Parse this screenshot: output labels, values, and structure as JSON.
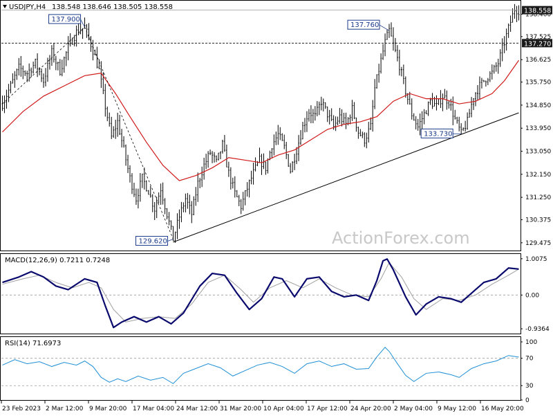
{
  "header": {
    "symbol_timeframe": "USDJPY,H4",
    "ohlc": "138.548 138.646 138.505 138.558"
  },
  "watermark": "ActionForex.com",
  "colors": {
    "candle": "#000000",
    "ma": "#d01919",
    "trendline": "#000000",
    "macd_main": "#0a0a6e",
    "macd_signal": "#a0a0a0",
    "rsi": "#1e8fd6",
    "price_badge_bg": "#1a1a1a",
    "price_badge_text": "#ffffff"
  },
  "chart_data": [
    {
      "type": "candlestick",
      "title": "USDJPY,H4",
      "ylim": [
        129.2,
        138.9
      ],
      "y_ticks": [
        "138.400",
        "137.525",
        "136.625",
        "135.750",
        "134.850",
        "133.950",
        "133.050",
        "132.150",
        "131.250",
        "130.375",
        "129.475"
      ],
      "y_tick_values": [
        138.4,
        137.525,
        136.625,
        135.75,
        134.85,
        133.95,
        133.05,
        132.15,
        131.25,
        130.375,
        129.475
      ],
      "x_ticks": [
        "23 Feb 2023",
        "2 Mar 12:00",
        "9 Mar 20:00",
        "17 Mar 04:00",
        "24 Mar 12:00",
        "31 Mar 20:00",
        "10 Apr 04:00",
        "17 Apr 12:00",
        "24 Apr 20:00",
        "2 May 04:00",
        "9 May 12:00",
        "16 May 20:00"
      ],
      "current_price": "138.558",
      "current_price_value": 138.558,
      "level_line": "137.270",
      "level_line_value": 137.27,
      "annotations": [
        {
          "label": "137.900",
          "value": 137.9
        },
        {
          "label": "129.620",
          "value": 129.62
        },
        {
          "label": "137.760",
          "value": 137.76
        },
        {
          "label": "133.730",
          "value": 133.73
        }
      ],
      "price_path": [
        [
          0,
          134.9
        ],
        [
          4,
          135.6
        ],
        [
          8,
          136.3
        ],
        [
          12,
          136.1
        ],
        [
          16,
          136.5
        ],
        [
          20,
          135.8
        ],
        [
          24,
          136.9
        ],
        [
          28,
          136.2
        ],
        [
          32,
          137.1
        ],
        [
          36,
          137.7
        ],
        [
          40,
          137.9
        ],
        [
          44,
          137.0
        ],
        [
          47,
          136.2
        ],
        [
          50,
          134.8
        ],
        [
          53,
          133.6
        ],
        [
          56,
          134.2
        ],
        [
          59,
          133.1
        ],
        [
          62,
          132.0
        ],
        [
          65,
          131.2
        ],
        [
          68,
          132.0
        ],
        [
          71,
          131.5
        ],
        [
          74,
          130.8
        ],
        [
          77,
          131.6
        ],
        [
          80,
          130.6
        ],
        [
          83,
          129.62
        ],
        [
          86,
          130.5
        ],
        [
          89,
          131.2
        ],
        [
          92,
          130.6
        ],
        [
          95,
          131.8
        ],
        [
          98,
          132.5
        ],
        [
          101,
          133.0
        ],
        [
          104,
          132.6
        ],
        [
          107,
          133.3
        ],
        [
          110,
          132.2
        ],
        [
          113,
          131.4
        ],
        [
          116,
          130.9
        ],
        [
          119,
          131.6
        ],
        [
          122,
          132.2
        ],
        [
          125,
          132.7
        ],
        [
          128,
          132.4
        ],
        [
          131,
          133.3
        ],
        [
          134,
          133.7
        ],
        [
          137,
          133.2
        ],
        [
          140,
          132.3
        ],
        [
          143,
          133.1
        ],
        [
          146,
          134.0
        ],
        [
          149,
          134.6
        ],
        [
          152,
          134.4
        ],
        [
          155,
          135.0
        ],
        [
          158,
          134.5
        ],
        [
          161,
          134.0
        ],
        [
          164,
          134.4
        ],
        [
          167,
          134.1
        ],
        [
          170,
          134.7
        ],
        [
          173,
          133.8
        ],
        [
          176,
          133.5
        ],
        [
          179,
          134.0
        ],
        [
          181,
          135.5
        ],
        [
          184,
          136.6
        ],
        [
          186,
          137.3
        ],
        [
          188,
          137.76
        ],
        [
          190,
          137.2
        ],
        [
          193,
          136.4
        ],
        [
          196,
          135.4
        ],
        [
          199,
          134.5
        ],
        [
          202,
          134.0
        ],
        [
          205,
          134.5
        ],
        [
          208,
          135.0
        ],
        [
          211,
          134.8
        ],
        [
          214,
          135.2
        ],
        [
          217,
          135.0
        ],
        [
          220,
          134.3
        ],
        [
          223,
          133.73
        ],
        [
          226,
          134.2
        ],
        [
          229,
          135.2
        ],
        [
          232,
          135.6
        ],
        [
          235,
          135.9
        ],
        [
          238,
          136.1
        ],
        [
          241,
          136.5
        ],
        [
          244,
          137.3
        ],
        [
          247,
          138.1
        ],
        [
          249,
          138.6
        ],
        [
          251,
          138.558
        ]
      ],
      "ma_path": [
        [
          0,
          133.8
        ],
        [
          10,
          134.6
        ],
        [
          20,
          135.2
        ],
        [
          30,
          135.6
        ],
        [
          40,
          136.0
        ],
        [
          48,
          136.1
        ],
        [
          55,
          135.3
        ],
        [
          62,
          134.4
        ],
        [
          70,
          133.4
        ],
        [
          78,
          132.5
        ],
        [
          86,
          131.9
        ],
        [
          94,
          132.1
        ],
        [
          102,
          132.4
        ],
        [
          110,
          132.8
        ],
        [
          118,
          132.7
        ],
        [
          126,
          132.6
        ],
        [
          134,
          132.9
        ],
        [
          142,
          133.1
        ],
        [
          150,
          133.5
        ],
        [
          158,
          133.9
        ],
        [
          166,
          134.1
        ],
        [
          174,
          134.2
        ],
        [
          182,
          134.4
        ],
        [
          190,
          135.0
        ],
        [
          198,
          135.3
        ],
        [
          206,
          135.1
        ],
        [
          214,
          135.1
        ],
        [
          222,
          134.9
        ],
        [
          230,
          135.0
        ],
        [
          238,
          135.3
        ],
        [
          244,
          135.8
        ],
        [
          251,
          136.6
        ]
      ],
      "trendline": [
        [
          83,
          129.5
        ],
        [
          251,
          134.55
        ]
      ]
    },
    {
      "type": "line",
      "title": "MACD(12,26,9) 0.7211 0.7248",
      "ylim": [
        -1.05,
        1.12
      ],
      "y_ticks": [
        "1.0075",
        "0.00",
        "-0.9364"
      ],
      "y_tick_values": [
        1.0075,
        0.0,
        -0.9364
      ],
      "series": [
        {
          "name": "main",
          "points": [
            [
              0,
              0.35
            ],
            [
              8,
              0.5
            ],
            [
              14,
              0.65
            ],
            [
              20,
              0.5
            ],
            [
              26,
              0.25
            ],
            [
              32,
              0.15
            ],
            [
              40,
              0.45
            ],
            [
              46,
              0.35
            ],
            [
              50,
              -0.3
            ],
            [
              54,
              -0.9
            ],
            [
              58,
              -0.75
            ],
            [
              64,
              -0.6
            ],
            [
              70,
              -0.75
            ],
            [
              76,
              -0.6
            ],
            [
              82,
              -0.8
            ],
            [
              88,
              -0.5
            ],
            [
              96,
              0.25
            ],
            [
              102,
              0.6
            ],
            [
              108,
              0.55
            ],
            [
              114,
              0.05
            ],
            [
              120,
              -0.4
            ],
            [
              126,
              -0.1
            ],
            [
              132,
              0.5
            ],
            [
              136,
              0.45
            ],
            [
              142,
              -0.05
            ],
            [
              148,
              0.45
            ],
            [
              154,
              0.5
            ],
            [
              160,
              0.1
            ],
            [
              166,
              -0.05
            ],
            [
              172,
              0.0
            ],
            [
              178,
              -0.15
            ],
            [
              182,
              0.4
            ],
            [
              185,
              0.95
            ],
            [
              187,
              1.0
            ],
            [
              190,
              0.7
            ],
            [
              196,
              -0.05
            ],
            [
              201,
              -0.55
            ],
            [
              206,
              -0.25
            ],
            [
              212,
              -0.05
            ],
            [
              218,
              -0.1
            ],
            [
              223,
              -0.2
            ],
            [
              228,
              0.05
            ],
            [
              234,
              0.35
            ],
            [
              240,
              0.45
            ],
            [
              246,
              0.75
            ],
            [
              251,
              0.72
            ]
          ]
        },
        {
          "name": "signal",
          "points": [
            [
              0,
              0.3
            ],
            [
              10,
              0.45
            ],
            [
              18,
              0.55
            ],
            [
              26,
              0.35
            ],
            [
              34,
              0.2
            ],
            [
              42,
              0.35
            ],
            [
              48,
              0.2
            ],
            [
              54,
              -0.4
            ],
            [
              60,
              -0.75
            ],
            [
              68,
              -0.65
            ],
            [
              76,
              -0.6
            ],
            [
              84,
              -0.65
            ],
            [
              92,
              -0.25
            ],
            [
              100,
              0.35
            ],
            [
              108,
              0.55
            ],
            [
              116,
              0.15
            ],
            [
              122,
              -0.2
            ],
            [
              130,
              0.2
            ],
            [
              138,
              0.4
            ],
            [
              146,
              0.2
            ],
            [
              154,
              0.45
            ],
            [
              162,
              0.2
            ],
            [
              170,
              0.0
            ],
            [
              178,
              -0.05
            ],
            [
              184,
              0.45
            ],
            [
              188,
              0.9
            ],
            [
              194,
              0.5
            ],
            [
              200,
              -0.1
            ],
            [
              206,
              -0.4
            ],
            [
              214,
              -0.1
            ],
            [
              222,
              -0.15
            ],
            [
              230,
              0.0
            ],
            [
              238,
              0.3
            ],
            [
              246,
              0.55
            ],
            [
              251,
              0.72
            ]
          ]
        }
      ]
    },
    {
      "type": "line",
      "title": "RSI(14) 71.6973",
      "ylim": [
        10,
        100
      ],
      "y_ticks": [
        "100",
        "70",
        "30",
        "0"
      ],
      "y_tick_values": [
        100,
        70,
        30,
        0
      ],
      "series": [
        {
          "name": "RSI(14)",
          "points": [
            [
              0,
              60
            ],
            [
              6,
              68
            ],
            [
              12,
              62
            ],
            [
              18,
              65
            ],
            [
              24,
              58
            ],
            [
              30,
              64
            ],
            [
              36,
              60
            ],
            [
              40,
              66
            ],
            [
              44,
              58
            ],
            [
              48,
              42
            ],
            [
              52,
              35
            ],
            [
              56,
              40
            ],
            [
              60,
              36
            ],
            [
              66,
              44
            ],
            [
              72,
              38
            ],
            [
              78,
              42
            ],
            [
              83,
              33
            ],
            [
              88,
              48
            ],
            [
              94,
              55
            ],
            [
              100,
              62
            ],
            [
              106,
              56
            ],
            [
              112,
              44
            ],
            [
              118,
              52
            ],
            [
              124,
              60
            ],
            [
              130,
              64
            ],
            [
              136,
              58
            ],
            [
              142,
              48
            ],
            [
              148,
              62
            ],
            [
              154,
              66
            ],
            [
              160,
              58
            ],
            [
              166,
              62
            ],
            [
              172,
              54
            ],
            [
              178,
              55
            ],
            [
              182,
              72
            ],
            [
              186,
              86
            ],
            [
              188,
              80
            ],
            [
              192,
              62
            ],
            [
              196,
              45
            ],
            [
              200,
              36
            ],
            [
              206,
              48
            ],
            [
              212,
              50
            ],
            [
              218,
              46
            ],
            [
              222,
              42
            ],
            [
              228,
              55
            ],
            [
              234,
              62
            ],
            [
              240,
              66
            ],
            [
              246,
              74
            ],
            [
              251,
              71.7
            ]
          ]
        }
      ]
    }
  ]
}
